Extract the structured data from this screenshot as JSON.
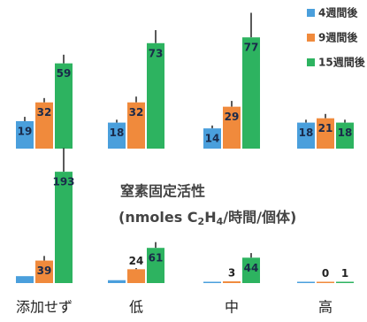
{
  "chart_data": [
    {
      "type": "bar",
      "series": [
        {
          "name": "4週間後",
          "color": "#4a9fdc",
          "values": [
            19,
            18,
            14,
            18
          ],
          "errors": [
            3,
            2,
            2,
            2
          ]
        },
        {
          "name": "9週間後",
          "color": "#f08a3c",
          "values": [
            32,
            32,
            29,
            21
          ],
          "errors": [
            3,
            4,
            4,
            3
          ]
        },
        {
          "name": "15週間後",
          "color": "#2db360",
          "values": [
            59,
            73,
            77,
            18
          ],
          "errors": [
            6,
            9,
            17,
            2
          ]
        }
      ],
      "ylim": [
        0,
        90
      ]
    },
    {
      "type": "bar",
      "annotation": [
        "窒素固定活性",
        "(nmoles C",
        "2",
        "H",
        "4",
        "/時間/個体)"
      ],
      "categories": [
        "添加せず",
        "低",
        "中",
        "高"
      ],
      "series": [
        {
          "color": "#4a9fdc",
          "values": [
            12,
            5,
            2,
            0
          ],
          "show_labels": false
        },
        {
          "color": "#f08a3c",
          "values": [
            39,
            24,
            3,
            0
          ],
          "errors": [
            8,
            2,
            0,
            0
          ]
        },
        {
          "color": "#2db360",
          "values": [
            193,
            61,
            44,
            1
          ],
          "errors": [
            41,
            10,
            8,
            0
          ]
        }
      ],
      "ylim": [
        0,
        230
      ]
    }
  ]
}
